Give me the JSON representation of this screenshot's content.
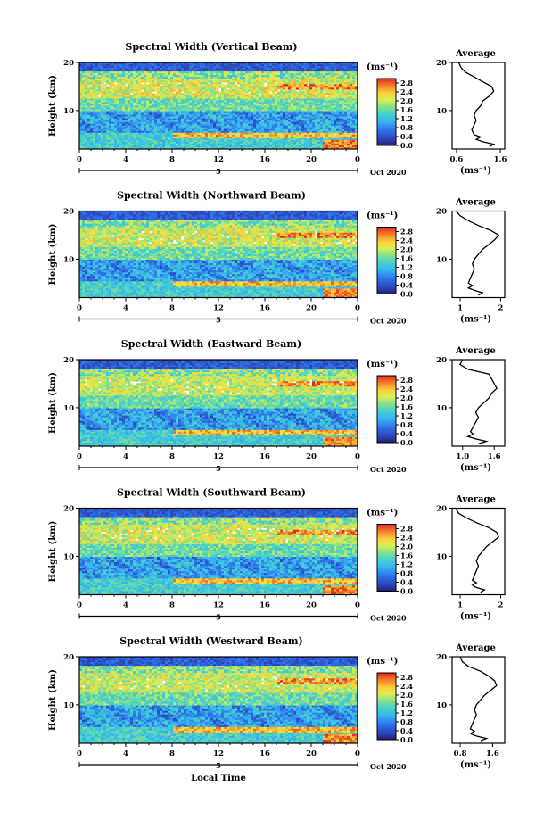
{
  "chart_data": [
    {
      "type": "heatmap",
      "title": "Spectral Width (Vertical Beam)",
      "ylabel": "Height (km)",
      "ylim": [
        2,
        20
      ],
      "y_ticks": [
        "20",
        "10"
      ],
      "x_ticks": [
        "0",
        "4",
        "8",
        "12",
        "16",
        "20",
        "0"
      ],
      "day_label": "5",
      "date_label": "Oct 2020",
      "colorbar": {
        "unit": "(ms⁻¹)",
        "ticks": [
          "2.8",
          "2.4",
          "2.0",
          "1.6",
          "1.2",
          "0.8",
          "0.4",
          "0.0"
        ],
        "range": [
          0,
          3.0
        ]
      },
      "profile": {
        "title": "Average",
        "xlabel": "(ms⁻¹)",
        "x_ticks": [
          "0.6",
          "1.6"
        ],
        "xlim": [
          0.5,
          1.7
        ],
        "y_ticks": [
          "20",
          "10"
        ],
        "height_km": [
          2.5,
          3,
          3.5,
          4,
          4.5,
          5,
          6,
          7,
          8,
          9,
          10,
          11,
          12,
          13,
          14,
          15,
          16,
          17,
          18,
          19,
          20
        ],
        "values": [
          1.35,
          1.45,
          1.2,
          1.05,
          1.15,
          1.0,
          0.95,
          1.0,
          1.05,
          1.0,
          1.05,
          1.15,
          1.2,
          1.35,
          1.45,
          1.4,
          1.2,
          1.0,
          0.8,
          0.7,
          0.65
        ]
      }
    },
    {
      "type": "heatmap",
      "title": "Spectral Width (Northward Beam)",
      "ylabel": "Height (km)",
      "ylim": [
        2,
        20
      ],
      "y_ticks": [
        "20",
        "10"
      ],
      "x_ticks": [
        "0",
        "4",
        "8",
        "12",
        "16",
        "20",
        "0"
      ],
      "day_label": "5",
      "date_label": "Oct 2020",
      "colorbar": {
        "unit": "(ms⁻¹)",
        "ticks": [
          "2.8",
          "2.4",
          "2.0",
          "1.6",
          "1.2",
          "0.8",
          "0.4",
          "0.0"
        ],
        "range": [
          0,
          3.0
        ]
      },
      "profile": {
        "title": "Average",
        "xlabel": "(ms⁻¹)",
        "x_ticks": [
          "1",
          "2"
        ],
        "xlim": [
          0.8,
          2.1
        ],
        "y_ticks": [
          "20",
          "10"
        ],
        "height_km": [
          2.5,
          3,
          3.5,
          4,
          4.5,
          5,
          6,
          7,
          8,
          9,
          10,
          11,
          12,
          13,
          14,
          15,
          16,
          17,
          18,
          19,
          20
        ],
        "values": [
          1.45,
          1.55,
          1.35,
          1.2,
          1.3,
          1.2,
          1.25,
          1.3,
          1.35,
          1.3,
          1.35,
          1.45,
          1.55,
          1.7,
          1.85,
          1.95,
          1.75,
          1.45,
          1.2,
          1.0,
          0.9
        ]
      }
    },
    {
      "type": "heatmap",
      "title": "Spectral Width (Eastward Beam)",
      "ylabel": "Height (km)",
      "ylim": [
        2,
        20
      ],
      "y_ticks": [
        "20",
        "10"
      ],
      "x_ticks": [
        "0",
        "4",
        "8",
        "12",
        "16",
        "20",
        "0"
      ],
      "day_label": "5",
      "date_label": "Oct 2020",
      "colorbar": {
        "unit": "(ms⁻¹)",
        "ticks": [
          "2.8",
          "2.4",
          "2.0",
          "1.6",
          "1.2",
          "0.8",
          "0.4",
          "0.0"
        ],
        "range": [
          0,
          3.0
        ]
      },
      "profile": {
        "title": "Average",
        "xlabel": "(ms⁻¹)",
        "x_ticks": [
          "1.0",
          "1.6"
        ],
        "xlim": [
          0.8,
          1.8
        ],
        "y_ticks": [
          "20",
          "10"
        ],
        "height_km": [
          2.5,
          3,
          3.5,
          4,
          4.5,
          5,
          6,
          7,
          8,
          9,
          10,
          11,
          12,
          13,
          14,
          15,
          16,
          17,
          18,
          19,
          20
        ],
        "values": [
          1.3,
          1.45,
          1.25,
          1.1,
          1.2,
          1.15,
          1.2,
          1.25,
          1.3,
          1.25,
          1.3,
          1.4,
          1.5,
          1.55,
          1.65,
          1.6,
          1.55,
          1.5,
          1.1,
          0.95,
          1.0
        ]
      }
    },
    {
      "type": "heatmap",
      "title": "Spectral Width (Southward Beam)",
      "ylabel": "Height (km)",
      "ylim": [
        2,
        20
      ],
      "y_ticks": [
        "20",
        "10"
      ],
      "x_ticks": [
        "0",
        "4",
        "8",
        "12",
        "16",
        "20",
        "0"
      ],
      "day_label": "5",
      "date_label": "Oct 2020",
      "colorbar": {
        "unit": "(ms⁻¹)",
        "ticks": [
          "2.8",
          "2.4",
          "2.0",
          "1.6",
          "1.2",
          "0.8",
          "0.4",
          "0.0"
        ],
        "range": [
          0,
          3.0
        ]
      },
      "profile": {
        "title": "Average",
        "xlabel": "(ms⁻¹)",
        "x_ticks": [
          "1",
          "2"
        ],
        "xlim": [
          0.8,
          2.1
        ],
        "y_ticks": [
          "20",
          "10"
        ],
        "height_km": [
          2.5,
          3,
          3.5,
          4,
          4.5,
          5,
          6,
          7,
          8,
          9,
          10,
          11,
          12,
          13,
          14,
          15,
          16,
          17,
          18,
          19,
          20
        ],
        "values": [
          1.5,
          1.6,
          1.4,
          1.3,
          1.4,
          1.3,
          1.35,
          1.4,
          1.45,
          1.4,
          1.45,
          1.55,
          1.65,
          1.8,
          1.95,
          1.9,
          1.7,
          1.4,
          1.15,
          0.95,
          0.9
        ]
      }
    },
    {
      "type": "heatmap",
      "title": "Spectral Width (Westward Beam)",
      "ylabel": "Height (km)",
      "ylim": [
        2,
        20
      ],
      "y_ticks": [
        "20",
        "10"
      ],
      "x_ticks": [
        "0",
        "4",
        "8",
        "12",
        "16",
        "20",
        "0"
      ],
      "day_label": "5",
      "date_label": "Oct 2020",
      "xlabel": "Local Time",
      "colorbar": {
        "unit": "(ms⁻¹)",
        "ticks": [
          "2.8",
          "2.4",
          "2.0",
          "1.6",
          "1.2",
          "0.8",
          "0.4",
          "0.0"
        ],
        "range": [
          0,
          3.0
        ]
      },
      "profile": {
        "title": "Average",
        "xlabel": "(ms⁻¹)",
        "x_ticks": [
          "0.8",
          "1.6"
        ],
        "xlim": [
          0.6,
          1.9
        ],
        "y_ticks": [
          "20",
          "10"
        ],
        "height_km": [
          2.5,
          3,
          3.5,
          4,
          4.5,
          5,
          6,
          7,
          8,
          9,
          10,
          11,
          12,
          13,
          14,
          15,
          16,
          17,
          18,
          19,
          20
        ],
        "values": [
          1.3,
          1.45,
          1.2,
          1.05,
          1.15,
          1.05,
          1.1,
          1.15,
          1.2,
          1.15,
          1.2,
          1.3,
          1.4,
          1.55,
          1.7,
          1.65,
          1.5,
          1.3,
          1.0,
          0.85,
          0.8
        ]
      }
    }
  ]
}
